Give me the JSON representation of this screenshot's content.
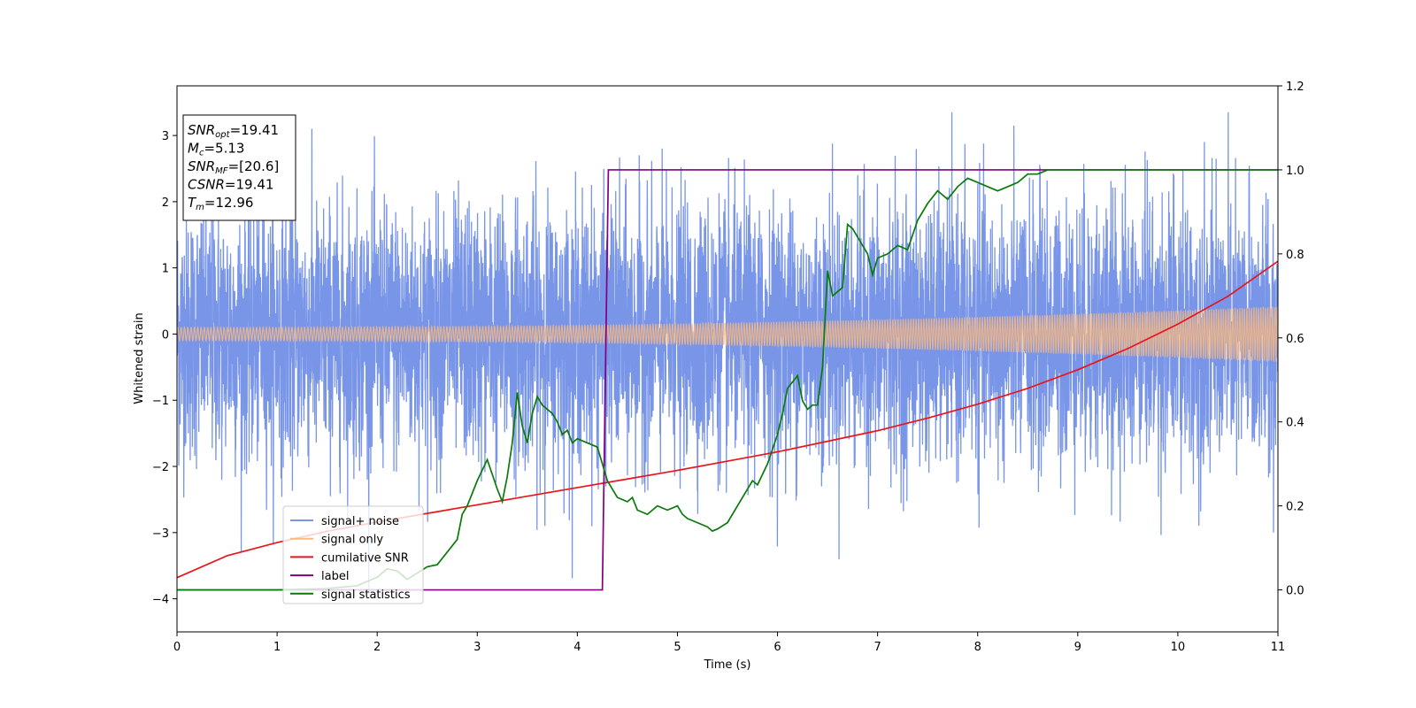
{
  "chart_data": {
    "type": "line",
    "xlabel": "Time (s)",
    "ylabel": "Whitened strain",
    "xlim": [
      0,
      11
    ],
    "ylim": [
      -4.5,
      3.75
    ],
    "ylim_right": [
      -0.1,
      1.2
    ],
    "x_ticks": [
      0,
      1,
      2,
      3,
      4,
      5,
      6,
      7,
      8,
      9,
      10,
      11
    ],
    "y_ticks": [
      -4,
      -3,
      -2,
      -1,
      0,
      1,
      2,
      3
    ],
    "y_ticks_right": [
      "0.0",
      "0.2",
      "0.4",
      "0.6",
      "0.8",
      "1.0",
      "1.2"
    ],
    "legend_placement": "lower-left",
    "grid": false,
    "info_box": [
      {
        "sym": "SNR",
        "sub": "opt",
        "text": "=19.41"
      },
      {
        "sym": "M",
        "sub": "c",
        "text": "=5.13"
      },
      {
        "sym": "SNR",
        "sub": "MF",
        "text": "=[20.6]"
      },
      {
        "sym": "CSNR",
        "sub": "",
        "text": "=19.41"
      },
      {
        "sym": "T",
        "sub": "m",
        "text": "=12.96"
      }
    ],
    "series": [
      {
        "name": "signal+ noise",
        "color": "#7895e8",
        "axis": "left",
        "kind": "noise",
        "noise_std": 0.95,
        "amplitude_start": 0.1,
        "amplitude_end": 0.42
      },
      {
        "name": "signal only",
        "color": "#fdb97d",
        "axis": "left",
        "kind": "chirp",
        "amplitude_start": 0.1,
        "amplitude_end": 0.42
      },
      {
        "name": "cumilative SNR",
        "color": "#e8161a",
        "axis": "left",
        "x": [
          0,
          0.5,
          1,
          1.5,
          2,
          2.5,
          3,
          3.5,
          4,
          4.5,
          5,
          5.5,
          6,
          6.5,
          7,
          7.5,
          8,
          8.5,
          9,
          9.5,
          10,
          10.5,
          11
        ],
        "y": [
          -3.68,
          -3.35,
          -3.15,
          -2.98,
          -2.84,
          -2.71,
          -2.58,
          -2.45,
          -2.32,
          -2.19,
          -2.06,
          -1.92,
          -1.78,
          -1.62,
          -1.46,
          -1.27,
          -1.06,
          -0.82,
          -0.54,
          -0.22,
          0.15,
          0.57,
          1.1
        ]
      },
      {
        "name": "label",
        "color": "#800080",
        "axis": "right",
        "x": [
          0,
          4.25,
          4.31,
          11
        ],
        "y": [
          0,
          0,
          1,
          1
        ]
      },
      {
        "name": "signal statistics",
        "color": "#0a7a0a",
        "axis": "right",
        "x": [
          0,
          0.5,
          1,
          1.5,
          1.8,
          2.0,
          2.1,
          2.2,
          2.3,
          2.4,
          2.5,
          2.6,
          2.7,
          2.8,
          2.85,
          2.9,
          3.0,
          3.1,
          3.2,
          3.25,
          3.3,
          3.35,
          3.4,
          3.45,
          3.5,
          3.55,
          3.6,
          3.65,
          3.7,
          3.75,
          3.8,
          3.85,
          3.9,
          3.95,
          4.0,
          4.1,
          4.2,
          4.25,
          4.3,
          4.35,
          4.4,
          4.5,
          4.55,
          4.6,
          4.7,
          4.8,
          4.9,
          5.0,
          5.05,
          5.1,
          5.2,
          5.3,
          5.35,
          5.4,
          5.5,
          5.6,
          5.7,
          5.75,
          5.8,
          5.9,
          6.0,
          6.05,
          6.1,
          6.2,
          6.25,
          6.3,
          6.35,
          6.4,
          6.45,
          6.5,
          6.55,
          6.6,
          6.65,
          6.7,
          6.75,
          6.8,
          6.85,
          6.9,
          6.95,
          7.0,
          7.1,
          7.2,
          7.3,
          7.4,
          7.5,
          7.6,
          7.7,
          7.8,
          7.85,
          7.9,
          8.0,
          8.1,
          8.2,
          8.3,
          8.4,
          8.5,
          8.6,
          8.7,
          9.0,
          9.5,
          10.0,
          10.5,
          11.0
        ],
        "y": [
          0.0,
          0.0,
          0.0,
          0.003,
          0.01,
          0.03,
          0.05,
          0.045,
          0.025,
          0.04,
          0.055,
          0.06,
          0.09,
          0.12,
          0.18,
          0.2,
          0.26,
          0.31,
          0.24,
          0.21,
          0.27,
          0.35,
          0.47,
          0.39,
          0.35,
          0.42,
          0.46,
          0.44,
          0.43,
          0.42,
          0.4,
          0.37,
          0.38,
          0.35,
          0.36,
          0.35,
          0.34,
          0.3,
          0.26,
          0.24,
          0.22,
          0.21,
          0.22,
          0.19,
          0.18,
          0.2,
          0.19,
          0.2,
          0.18,
          0.17,
          0.16,
          0.15,
          0.14,
          0.145,
          0.16,
          0.2,
          0.24,
          0.26,
          0.25,
          0.3,
          0.37,
          0.42,
          0.48,
          0.51,
          0.45,
          0.43,
          0.44,
          0.44,
          0.53,
          0.76,
          0.7,
          0.71,
          0.72,
          0.87,
          0.86,
          0.84,
          0.82,
          0.8,
          0.75,
          0.79,
          0.8,
          0.82,
          0.81,
          0.88,
          0.92,
          0.95,
          0.93,
          0.96,
          0.97,
          0.98,
          0.97,
          0.96,
          0.95,
          0.96,
          0.97,
          0.99,
          0.99,
          1.0,
          1.0,
          1.0,
          1.0,
          1.0,
          1.0
        ]
      }
    ]
  }
}
